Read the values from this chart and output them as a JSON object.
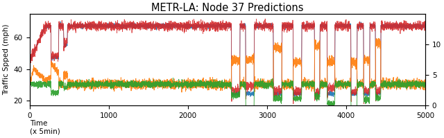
{
  "title": "METR-LA: Node 37 Predictions",
  "xlabel": "Time\n(x 5min)",
  "ylabel": "Traffic Spped (mph)",
  "xlim": [
    0,
    5000
  ],
  "ylim": [
    17,
    75
  ],
  "ylim2": [
    0,
    15
  ],
  "yticks": [
    20,
    40,
    60
  ],
  "yticks2": [
    0,
    5,
    10
  ],
  "xticks": [
    0,
    1000,
    2000,
    3000,
    4000,
    5000
  ],
  "n_points": 5000,
  "high_speed_mean": 67.5,
  "low_speed_mean": 30.5,
  "drop_positions": [
    270,
    430,
    2550,
    2730,
    3080,
    3330,
    3600,
    3760,
    4060,
    4220,
    4370
  ],
  "drop_widths": [
    100,
    50,
    110,
    110,
    110,
    110,
    70,
    100,
    80,
    80,
    70
  ],
  "drop_depths_blue": [
    20,
    12,
    43,
    43,
    43,
    43,
    43,
    43,
    43,
    43,
    43
  ],
  "colors": {
    "blue": "#1f77b4",
    "red": "#d62728",
    "orange": "#ff7f0e",
    "green": "#2ca02c"
  },
  "figsize": [
    6.4,
    1.99
  ],
  "dpi": 100
}
